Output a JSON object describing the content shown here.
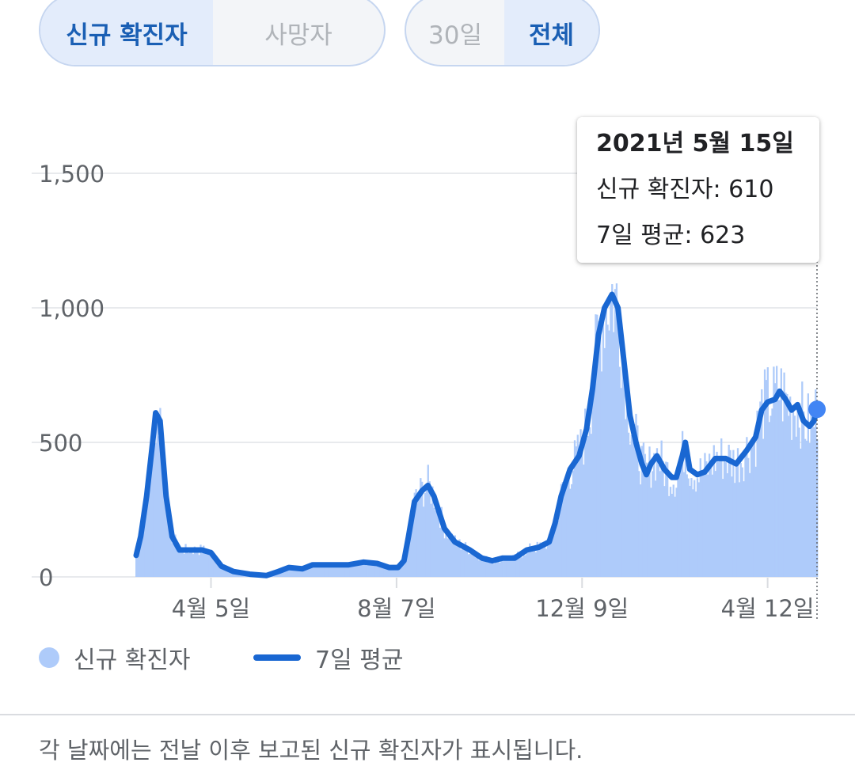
{
  "toggles": {
    "metric": [
      {
        "label": "신규 확진자",
        "active": true
      },
      {
        "label": "사망자",
        "active": false
      }
    ],
    "range": [
      {
        "label": "30일",
        "active": false
      },
      {
        "label": "전체",
        "active": true
      }
    ]
  },
  "tooltip": {
    "date": "2021년 5월 15일",
    "new_cases": "신규 확진자: 610",
    "avg": "7일 평균: 623"
  },
  "legend": {
    "new_cases": "신규 확진자",
    "avg": "7일 평균"
  },
  "footnote": "각 날짜에는 전날 이후 보고된 신규 확진자가 표시됩니다.",
  "colors": {
    "bars": "#aecbfa",
    "line": "#1967d2",
    "marker": "#4285f4",
    "grid": "#e8eaed"
  },
  "chart_data": {
    "type": "bar",
    "grid": true,
    "ylim": [
      0,
      1500
    ],
    "y_ticks": [
      {
        "value": 0,
        "label": "0"
      },
      {
        "value": 500,
        "label": "500"
      },
      {
        "value": 1000,
        "label": "1,000"
      },
      {
        "value": 1500,
        "label": "1,500"
      }
    ],
    "x_range": [
      "2020-02-15",
      "2021-05-15"
    ],
    "x_ticks": [
      {
        "date": "2020-04-05",
        "label": "4월 5일"
      },
      {
        "date": "2020-08-07",
        "label": "8월 7일"
      },
      {
        "date": "2020-12-09",
        "label": "12월 9일"
      },
      {
        "date": "2021-04-12",
        "label": "4월 12일"
      }
    ],
    "series": [
      {
        "name": "7일 평균",
        "type": "line",
        "points": [
          [
            "2020-02-15",
            80
          ],
          [
            "2020-02-18",
            150
          ],
          [
            "2020-02-22",
            300
          ],
          [
            "2020-02-26",
            500
          ],
          [
            "2020-02-28",
            610
          ],
          [
            "2020-03-02",
            580
          ],
          [
            "2020-03-06",
            300
          ],
          [
            "2020-03-10",
            150
          ],
          [
            "2020-03-15",
            100
          ],
          [
            "2020-03-22",
            100
          ],
          [
            "2020-03-30",
            100
          ],
          [
            "2020-04-05",
            90
          ],
          [
            "2020-04-12",
            40
          ],
          [
            "2020-04-20",
            20
          ],
          [
            "2020-05-01",
            10
          ],
          [
            "2020-05-12",
            5
          ],
          [
            "2020-05-20",
            20
          ],
          [
            "2020-05-27",
            35
          ],
          [
            "2020-06-05",
            30
          ],
          [
            "2020-06-12",
            45
          ],
          [
            "2020-06-25",
            45
          ],
          [
            "2020-07-06",
            45
          ],
          [
            "2020-07-16",
            55
          ],
          [
            "2020-07-25",
            50
          ],
          [
            "2020-08-02",
            35
          ],
          [
            "2020-08-08",
            35
          ],
          [
            "2020-08-12",
            60
          ],
          [
            "2020-08-15",
            150
          ],
          [
            "2020-08-19",
            280
          ],
          [
            "2020-08-24",
            320
          ],
          [
            "2020-08-28",
            340
          ],
          [
            "2020-09-01",
            300
          ],
          [
            "2020-09-08",
            180
          ],
          [
            "2020-09-15",
            130
          ],
          [
            "2020-09-25",
            100
          ],
          [
            "2020-10-03",
            70
          ],
          [
            "2020-10-10",
            60
          ],
          [
            "2020-10-17",
            70
          ],
          [
            "2020-10-25",
            70
          ],
          [
            "2020-11-02",
            100
          ],
          [
            "2020-11-10",
            110
          ],
          [
            "2020-11-17",
            130
          ],
          [
            "2020-11-21",
            200
          ],
          [
            "2020-11-25",
            300
          ],
          [
            "2020-12-01",
            400
          ],
          [
            "2020-12-07",
            450
          ],
          [
            "2020-12-12",
            550
          ],
          [
            "2020-12-16",
            700
          ],
          [
            "2020-12-20",
            900
          ],
          [
            "2020-12-24",
            1000
          ],
          [
            "2020-12-29",
            1050
          ],
          [
            "2021-01-02",
            1000
          ],
          [
            "2021-01-06",
            800
          ],
          [
            "2021-01-10",
            600
          ],
          [
            "2021-01-14",
            500
          ],
          [
            "2021-01-18",
            420
          ],
          [
            "2021-01-21",
            380
          ],
          [
            "2021-01-24",
            420
          ],
          [
            "2021-01-28",
            450
          ],
          [
            "2021-02-02",
            400
          ],
          [
            "2021-02-07",
            370
          ],
          [
            "2021-02-10",
            370
          ],
          [
            "2021-02-14",
            450
          ],
          [
            "2021-02-16",
            500
          ],
          [
            "2021-02-19",
            400
          ],
          [
            "2021-02-24",
            380
          ],
          [
            "2021-03-01",
            390
          ],
          [
            "2021-03-08",
            440
          ],
          [
            "2021-03-15",
            440
          ],
          [
            "2021-03-22",
            420
          ],
          [
            "2021-03-29",
            470
          ],
          [
            "2021-04-04",
            520
          ],
          [
            "2021-04-08",
            620
          ],
          [
            "2021-04-12",
            650
          ],
          [
            "2021-04-17",
            660
          ],
          [
            "2021-04-20",
            690
          ],
          [
            "2021-04-24",
            660
          ],
          [
            "2021-04-28",
            620
          ],
          [
            "2021-05-02",
            640
          ],
          [
            "2021-05-06",
            580
          ],
          [
            "2021-05-10",
            560
          ],
          [
            "2021-05-13",
            580
          ],
          [
            "2021-05-15",
            623
          ]
        ]
      }
    ]
  }
}
